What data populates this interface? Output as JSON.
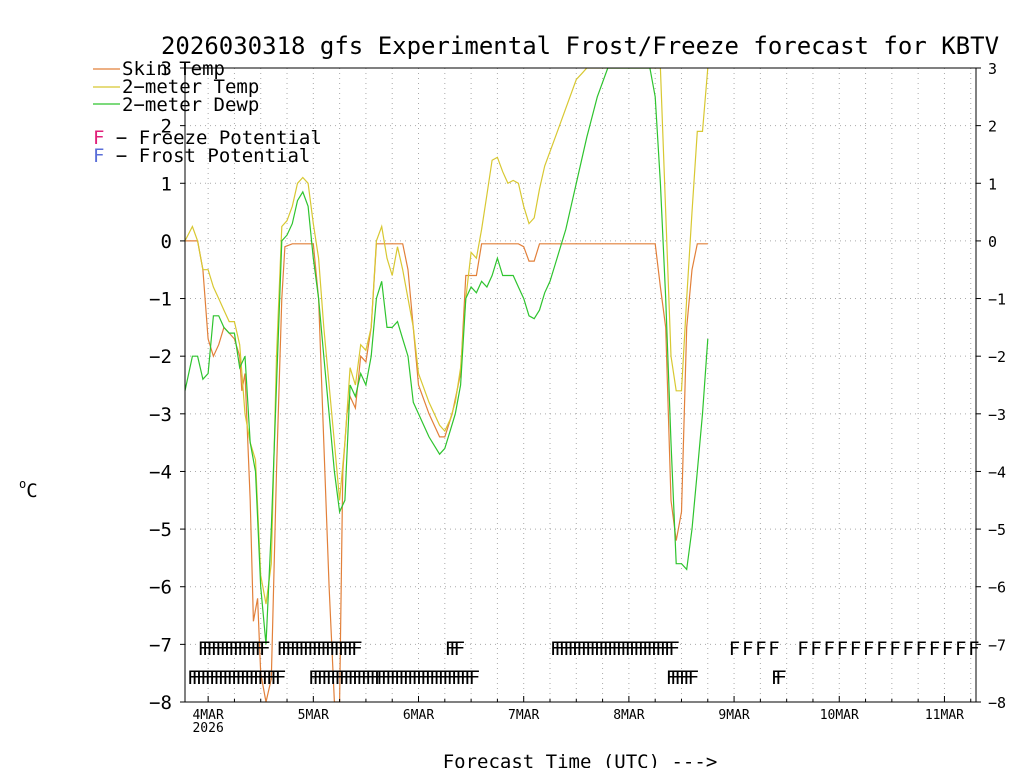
{
  "chart_data": {
    "type": "line",
    "title": "2026030318 gfs Experimental Frost/Freeze forecast for KBTV",
    "xlabel": "Forecast Time (UTC) --->",
    "ylabel": "°C",
    "ylabel_sup": "o",
    "ylabel_main": "C",
    "ylim": [
      -8,
      3
    ],
    "xlim": [
      -0.22,
      7.3
    ],
    "x_unit": "days after 4MAR 00Z",
    "grid": true,
    "yticks": [
      -8,
      -7,
      -6,
      -5,
      -4,
      -3,
      -2,
      -1,
      0,
      1,
      2,
      3
    ],
    "ytick_labels": [
      "−8",
      "−7",
      "−6",
      "−5",
      "−4",
      "−3",
      "−2",
      "−1",
      "0",
      "1",
      "2",
      "3"
    ],
    "xticks": [
      {
        "x": 0,
        "label": "4MAR",
        "sub": "2026"
      },
      {
        "x": 1,
        "label": "5MAR"
      },
      {
        "x": 2,
        "label": "6MAR"
      },
      {
        "x": 3,
        "label": "7MAR"
      },
      {
        "x": 4,
        "label": "8MAR"
      },
      {
        "x": 5,
        "label": "9MAR"
      },
      {
        "x": 6,
        "label": "10MAR"
      },
      {
        "x": 7,
        "label": "11MAR"
      }
    ],
    "legend": {
      "placement": "top-left",
      "entries": [
        {
          "label": "Skin Temp",
          "color": "#e2803a"
        },
        {
          "label": "2−meter Temp",
          "color": "#d8c832"
        },
        {
          "label": "2−meter Dewp",
          "color": "#2ec42e"
        }
      ],
      "potential_entries": [
        {
          "symbol": "F",
          "label": " − Freeze Potential",
          "color": "#e0207a"
        },
        {
          "symbol": "F",
          "label": " − Frost Potential",
          "color": "#5a6ed8"
        }
      ]
    },
    "series": [
      {
        "name": "Skin Temp",
        "color": "#e2803a",
        "points": [
          [
            -0.22,
            0.0
          ],
          [
            -0.1,
            0.0
          ],
          [
            -0.05,
            -0.5
          ],
          [
            0.0,
            -1.7
          ],
          [
            0.05,
            -2.0
          ],
          [
            0.1,
            -1.8
          ],
          [
            0.15,
            -1.5
          ],
          [
            0.2,
            -1.6
          ],
          [
            0.25,
            -1.7
          ],
          [
            0.3,
            -2.0
          ],
          [
            0.32,
            -2.6
          ],
          [
            0.35,
            -2.3
          ],
          [
            0.4,
            -4.5
          ],
          [
            0.43,
            -6.6
          ],
          [
            0.47,
            -6.2
          ],
          [
            0.5,
            -7.5
          ],
          [
            0.55,
            -8.0
          ],
          [
            0.6,
            -7.6
          ],
          [
            0.65,
            -4.0
          ],
          [
            0.7,
            -1.0
          ],
          [
            0.73,
            -0.1
          ],
          [
            0.8,
            -0.05
          ],
          [
            1.0,
            -0.05
          ],
          [
            1.05,
            -1.0
          ],
          [
            1.1,
            -3.5
          ],
          [
            1.15,
            -6.0
          ],
          [
            1.2,
            -8.0
          ],
          [
            1.25,
            -8.0
          ],
          [
            1.28,
            -4.0
          ],
          [
            1.32,
            -3.0
          ],
          [
            1.35,
            -2.7
          ],
          [
            1.4,
            -2.9
          ],
          [
            1.45,
            -2.0
          ],
          [
            1.5,
            -2.1
          ],
          [
            1.55,
            -1.5
          ],
          [
            1.6,
            -0.05
          ],
          [
            1.85,
            -0.05
          ],
          [
            1.9,
            -0.5
          ],
          [
            2.0,
            -2.5
          ],
          [
            2.1,
            -3.0
          ],
          [
            2.2,
            -3.4
          ],
          [
            2.25,
            -3.4
          ],
          [
            2.32,
            -3.0
          ],
          [
            2.4,
            -2.3
          ],
          [
            2.45,
            -0.6
          ],
          [
            2.5,
            -0.6
          ],
          [
            2.55,
            -0.6
          ],
          [
            2.6,
            -0.05
          ],
          [
            2.95,
            -0.05
          ],
          [
            3.0,
            -0.1
          ],
          [
            3.05,
            -0.35
          ],
          [
            3.1,
            -0.35
          ],
          [
            3.15,
            -0.05
          ],
          [
            4.25,
            -0.05
          ],
          [
            4.3,
            -0.8
          ],
          [
            4.35,
            -1.5
          ],
          [
            4.4,
            -4.5
          ],
          [
            4.45,
            -5.2
          ],
          [
            4.5,
            -4.7
          ],
          [
            4.55,
            -1.5
          ],
          [
            4.6,
            -0.5
          ],
          [
            4.65,
            -0.05
          ],
          [
            4.75,
            -0.05
          ]
        ]
      },
      {
        "name": "2-meter Temp",
        "color": "#d8c832",
        "points": [
          [
            -0.22,
            0.0
          ],
          [
            -0.15,
            0.25
          ],
          [
            -0.1,
            0.0
          ],
          [
            -0.05,
            -0.5
          ],
          [
            0.0,
            -0.5
          ],
          [
            0.05,
            -0.8
          ],
          [
            0.1,
            -1.0
          ],
          [
            0.15,
            -1.2
          ],
          [
            0.2,
            -1.4
          ],
          [
            0.25,
            -1.4
          ],
          [
            0.3,
            -1.8
          ],
          [
            0.35,
            -3.0
          ],
          [
            0.4,
            -3.5
          ],
          [
            0.45,
            -3.8
          ],
          [
            0.5,
            -5.8
          ],
          [
            0.55,
            -6.3
          ],
          [
            0.6,
            -5.6
          ],
          [
            0.65,
            -2.0
          ],
          [
            0.7,
            0.25
          ],
          [
            0.75,
            0.35
          ],
          [
            0.8,
            0.6
          ],
          [
            0.85,
            1.0
          ],
          [
            0.9,
            1.1
          ],
          [
            0.95,
            1.0
          ],
          [
            1.0,
            0.3
          ],
          [
            1.05,
            -0.3
          ],
          [
            1.1,
            -1.5
          ],
          [
            1.15,
            -2.5
          ],
          [
            1.2,
            -3.5
          ],
          [
            1.25,
            -4.5
          ],
          [
            1.3,
            -3.5
          ],
          [
            1.35,
            -2.2
          ],
          [
            1.4,
            -2.5
          ],
          [
            1.45,
            -1.8
          ],
          [
            1.5,
            -1.9
          ],
          [
            1.55,
            -1.5
          ],
          [
            1.6,
            0.0
          ],
          [
            1.65,
            0.25
          ],
          [
            1.7,
            -0.3
          ],
          [
            1.75,
            -0.6
          ],
          [
            1.8,
            -0.1
          ],
          [
            1.85,
            -0.5
          ],
          [
            1.9,
            -1.0
          ],
          [
            1.95,
            -1.5
          ],
          [
            2.0,
            -2.3
          ],
          [
            2.1,
            -2.8
          ],
          [
            2.2,
            -3.2
          ],
          [
            2.25,
            -3.3
          ],
          [
            2.3,
            -3.1
          ],
          [
            2.35,
            -2.8
          ],
          [
            2.4,
            -2.2
          ],
          [
            2.45,
            -1.0
          ],
          [
            2.5,
            -0.2
          ],
          [
            2.55,
            -0.3
          ],
          [
            2.6,
            0.2
          ],
          [
            2.65,
            0.8
          ],
          [
            2.7,
            1.4
          ],
          [
            2.75,
            1.45
          ],
          [
            2.8,
            1.2
          ],
          [
            2.85,
            1.0
          ],
          [
            2.9,
            1.05
          ],
          [
            2.95,
            1.0
          ],
          [
            3.0,
            0.6
          ],
          [
            3.05,
            0.3
          ],
          [
            3.1,
            0.4
          ],
          [
            3.15,
            0.9
          ],
          [
            3.2,
            1.3
          ],
          [
            3.3,
            1.8
          ],
          [
            3.4,
            2.3
          ],
          [
            3.5,
            2.8
          ],
          [
            3.55,
            2.9
          ],
          [
            3.6,
            3.0
          ],
          [
            3.7,
            3.0
          ],
          [
            4.3,
            3.0
          ],
          [
            4.35,
            0.5
          ],
          [
            4.4,
            -2.0
          ],
          [
            4.45,
            -2.6
          ],
          [
            4.5,
            -2.6
          ],
          [
            4.55,
            -1.0
          ],
          [
            4.6,
            0.5
          ],
          [
            4.65,
            1.9
          ],
          [
            4.7,
            1.9
          ],
          [
            4.75,
            3.0
          ]
        ]
      },
      {
        "name": "2-meter Dewp",
        "color": "#2ec42e",
        "points": [
          [
            -0.22,
            -2.6
          ],
          [
            -0.15,
            -2.0
          ],
          [
            -0.1,
            -2.0
          ],
          [
            -0.05,
            -2.4
          ],
          [
            0.0,
            -2.3
          ],
          [
            0.05,
            -1.3
          ],
          [
            0.1,
            -1.3
          ],
          [
            0.15,
            -1.5
          ],
          [
            0.2,
            -1.6
          ],
          [
            0.25,
            -1.6
          ],
          [
            0.3,
            -2.2
          ],
          [
            0.35,
            -2.0
          ],
          [
            0.4,
            -3.5
          ],
          [
            0.45,
            -4.0
          ],
          [
            0.5,
            -6.0
          ],
          [
            0.55,
            -7.0
          ],
          [
            0.6,
            -5.0
          ],
          [
            0.65,
            -2.5
          ],
          [
            0.7,
            0.0
          ],
          [
            0.75,
            0.1
          ],
          [
            0.8,
            0.3
          ],
          [
            0.85,
            0.7
          ],
          [
            0.9,
            0.85
          ],
          [
            0.95,
            0.6
          ],
          [
            1.0,
            -0.3
          ],
          [
            1.05,
            -1.0
          ],
          [
            1.1,
            -2.0
          ],
          [
            1.15,
            -3.0
          ],
          [
            1.2,
            -4.0
          ],
          [
            1.25,
            -4.7
          ],
          [
            1.3,
            -4.5
          ],
          [
            1.35,
            -2.5
          ],
          [
            1.4,
            -2.7
          ],
          [
            1.45,
            -2.3
          ],
          [
            1.5,
            -2.5
          ],
          [
            1.55,
            -2.0
          ],
          [
            1.6,
            -1.0
          ],
          [
            1.65,
            -0.7
          ],
          [
            1.7,
            -1.5
          ],
          [
            1.75,
            -1.5
          ],
          [
            1.8,
            -1.4
          ],
          [
            1.85,
            -1.7
          ],
          [
            1.9,
            -2.0
          ],
          [
            1.95,
            -2.8
          ],
          [
            2.0,
            -3.0
          ],
          [
            2.1,
            -3.4
          ],
          [
            2.2,
            -3.7
          ],
          [
            2.25,
            -3.6
          ],
          [
            2.3,
            -3.3
          ],
          [
            2.35,
            -3.0
          ],
          [
            2.4,
            -2.5
          ],
          [
            2.45,
            -1.0
          ],
          [
            2.5,
            -0.8
          ],
          [
            2.55,
            -0.9
          ],
          [
            2.6,
            -0.7
          ],
          [
            2.65,
            -0.8
          ],
          [
            2.7,
            -0.6
          ],
          [
            2.75,
            -0.3
          ],
          [
            2.8,
            -0.6
          ],
          [
            2.85,
            -0.6
          ],
          [
            2.9,
            -0.6
          ],
          [
            2.95,
            -0.8
          ],
          [
            3.0,
            -1.0
          ],
          [
            3.05,
            -1.3
          ],
          [
            3.1,
            -1.35
          ],
          [
            3.15,
            -1.2
          ],
          [
            3.2,
            -0.9
          ],
          [
            3.25,
            -0.7
          ],
          [
            3.3,
            -0.4
          ],
          [
            3.4,
            0.2
          ],
          [
            3.5,
            1.0
          ],
          [
            3.6,
            1.8
          ],
          [
            3.7,
            2.5
          ],
          [
            3.8,
            3.0
          ],
          [
            4.2,
            3.0
          ],
          [
            4.25,
            2.5
          ],
          [
            4.3,
            1.0
          ],
          [
            4.35,
            -1.0
          ],
          [
            4.4,
            -3.5
          ],
          [
            4.45,
            -5.6
          ],
          [
            4.5,
            -5.6
          ],
          [
            4.55,
            -5.7
          ],
          [
            4.6,
            -5.0
          ],
          [
            4.65,
            -4.0
          ],
          [
            4.7,
            -3.0
          ],
          [
            4.75,
            -1.7
          ]
        ]
      }
    ],
    "potential_rows": [
      {
        "name": "Frost Potential",
        "color": "#5a6ed8",
        "y": -7.05,
        "runs": [
          {
            "start": -0.1,
            "end": 0.5,
            "step": 0.0417
          },
          {
            "start": 0.65,
            "end": 1.4,
            "step": 0.0417
          },
          {
            "start": 2.25,
            "end": 2.35,
            "step": 0.0417
          },
          {
            "start": 3.25,
            "end": 4.4,
            "step": 0.0417
          },
          {
            "start": 4.95,
            "end": 5.4,
            "step": 0.125
          },
          {
            "start": 5.6,
            "end": 7.3,
            "step": 0.125
          }
        ]
      },
      {
        "name": "Freeze Potential",
        "color": "#e0207a",
        "y": -7.55,
        "runs": [
          {
            "start": -0.2,
            "end": 0.65,
            "step": 0.0417
          },
          {
            "start": 0.95,
            "end": 1.6,
            "step": 0.0417
          },
          {
            "start": 1.6,
            "end": 2.5,
            "step": 0.0417
          },
          {
            "start": 4.35,
            "end": 4.6,
            "step": 0.0417
          },
          {
            "start": 5.35,
            "end": 5.4,
            "step": 0.0417
          }
        ]
      }
    ],
    "potential_symbol": "F"
  }
}
